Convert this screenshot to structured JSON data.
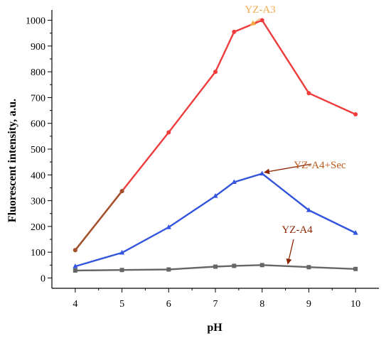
{
  "chart_data": {
    "type": "line",
    "xlabel": "pH",
    "ylabel": "Fluorescent intensity, a.u.",
    "xlim": [
      3.5,
      10.5
    ],
    "ylim": [
      -40,
      1040
    ],
    "xticks": [
      4,
      5,
      6,
      7,
      8,
      9,
      10
    ],
    "yticks": [
      0,
      100,
      200,
      300,
      400,
      500,
      600,
      700,
      800,
      900,
      1000
    ],
    "grid": false,
    "series": [
      {
        "name": "YZ-A3",
        "color": "#ee3b3b",
        "marker": "circle",
        "x": [
          4,
          5,
          6,
          7,
          7.4,
          8,
          9,
          10
        ],
        "y": [
          108,
          337,
          565,
          800,
          955,
          1000,
          717,
          635
        ]
      },
      {
        "name": "YZ-A4+Sec",
        "color": "#3355dd",
        "marker": "triangle",
        "x": [
          4,
          5,
          6,
          7,
          7.4,
          8,
          9,
          10
        ],
        "y": [
          45,
          98,
          197,
          318,
          372,
          405,
          263,
          175
        ]
      },
      {
        "name": "YZ-A4",
        "color": "#666666",
        "marker": "square",
        "x": [
          4,
          5,
          6,
          7,
          7.4,
          8,
          9,
          10
        ],
        "y": [
          29,
          31,
          33,
          44,
          47,
          50,
          42,
          35
        ]
      }
    ],
    "annotations": [
      {
        "text": "YZ-A3",
        "color": "#f4a94a",
        "arrow_color": "#f4a94a",
        "target": [
          7.75,
          980
        ]
      },
      {
        "text": "YZ-A4+Sec",
        "color": "#c05a1a",
        "arrow_color": "#8b2500",
        "target": [
          8.05,
          410
        ]
      },
      {
        "text": "YZ-A4",
        "color": "#8b2500",
        "arrow_color": "#8b2500",
        "target": [
          8.55,
          55
        ]
      }
    ]
  }
}
